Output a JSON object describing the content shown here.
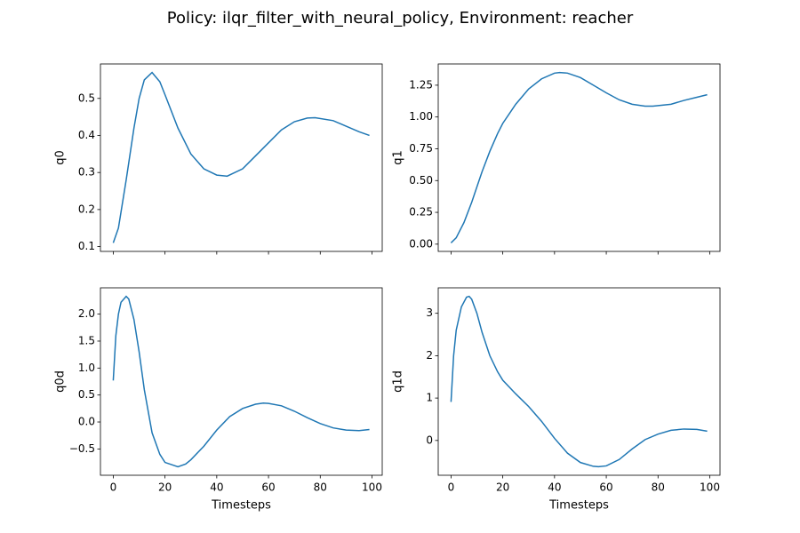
{
  "title": "Policy: ilqr_filter_with_neural_policy, Environment: reacher",
  "chart_data": [
    {
      "type": "line",
      "ylabel": "q0",
      "color": "#1f77b4",
      "x_tick_labels": false,
      "x": [
        0,
        2,
        5,
        8,
        10,
        12,
        15,
        18,
        20,
        25,
        30,
        35,
        40,
        44,
        50,
        55,
        60,
        65,
        70,
        75,
        78,
        85,
        90,
        95,
        99
      ],
      "values": [
        0.11,
        0.15,
        0.28,
        0.42,
        0.5,
        0.55,
        0.57,
        0.545,
        0.51,
        0.42,
        0.35,
        0.31,
        0.293,
        0.29,
        0.31,
        0.345,
        0.38,
        0.415,
        0.437,
        0.447,
        0.448,
        0.44,
        0.425,
        0.41,
        0.4
      ],
      "xlim": [
        -4.95,
        103.95
      ],
      "xticks": [
        0,
        20,
        40,
        60,
        80,
        100
      ],
      "ylim": [
        0.087,
        0.593
      ],
      "yticks": [
        0.1,
        0.2,
        0.3,
        0.4,
        0.5
      ]
    },
    {
      "type": "line",
      "ylabel": "q1",
      "color": "#1f77b4",
      "x_tick_labels": false,
      "x": [
        0,
        2,
        5,
        8,
        10,
        12,
        15,
        18,
        20,
        25,
        30,
        35,
        40,
        42,
        45,
        50,
        55,
        60,
        65,
        70,
        75,
        78,
        85,
        90,
        95,
        99
      ],
      "values": [
        0.01,
        0.05,
        0.17,
        0.33,
        0.45,
        0.57,
        0.73,
        0.87,
        0.95,
        1.1,
        1.22,
        1.3,
        1.345,
        1.35,
        1.345,
        1.31,
        1.25,
        1.19,
        1.135,
        1.1,
        1.085,
        1.085,
        1.1,
        1.13,
        1.155,
        1.175
      ],
      "xlim": [
        -4.95,
        103.95
      ],
      "xticks": [
        0,
        20,
        40,
        60,
        80,
        100
      ],
      "ylim": [
        -0.057,
        1.417
      ],
      "yticks": [
        {
          "value": 0,
          "label": "0.00"
        },
        {
          "value": 0.25,
          "label": "0.25"
        },
        {
          "value": 0.5,
          "label": "0.50"
        },
        {
          "value": 0.75,
          "label": "0.75"
        },
        {
          "value": 1,
          "label": "1.00"
        },
        {
          "value": 1.25,
          "label": "1.25"
        }
      ]
    },
    {
      "type": "line",
      "ylabel": "q0d",
      "xlabel": "Timesteps",
      "color": "#1f77b4",
      "x": [
        0,
        1,
        2,
        3,
        5,
        6,
        8,
        10,
        12,
        15,
        18,
        20,
        25,
        28,
        30,
        35,
        40,
        45,
        50,
        55,
        58,
        60,
        65,
        70,
        75,
        80,
        85,
        90,
        95,
        99
      ],
      "values": [
        0.77,
        1.6,
        2.0,
        2.22,
        2.33,
        2.28,
        1.9,
        1.3,
        0.6,
        -0.2,
        -0.6,
        -0.75,
        -0.83,
        -0.78,
        -0.7,
        -0.45,
        -0.15,
        0.1,
        0.25,
        0.33,
        0.35,
        0.345,
        0.3,
        0.2,
        0.08,
        -0.03,
        -0.11,
        -0.15,
        -0.16,
        -0.14
      ],
      "xlim": [
        -4.95,
        103.95
      ],
      "xticks": [
        0,
        20,
        40,
        60,
        80,
        100
      ],
      "ylim": [
        -0.988,
        2.488
      ],
      "yticks": [
        {
          "value": -0.5,
          "label": "−0.5"
        },
        {
          "value": 0,
          "label": "0.0"
        },
        0.5,
        {
          "value": 1,
          "label": "1.0"
        },
        1.5,
        {
          "value": 2,
          "label": "2.0"
        }
      ]
    },
    {
      "type": "line",
      "ylabel": "q1d",
      "xlabel": "Timesteps",
      "color": "#1f77b4",
      "x": [
        0,
        1,
        2,
        4,
        6,
        7,
        8,
        10,
        12,
        15,
        18,
        20,
        25,
        30,
        35,
        40,
        45,
        50,
        55,
        57,
        60,
        65,
        70,
        75,
        80,
        85,
        90,
        95,
        99
      ],
      "values": [
        0.91,
        2.0,
        2.6,
        3.15,
        3.38,
        3.4,
        3.33,
        3.0,
        2.55,
        2.0,
        1.62,
        1.42,
        1.1,
        0.8,
        0.45,
        0.05,
        -0.3,
        -0.52,
        -0.61,
        -0.62,
        -0.6,
        -0.45,
        -0.2,
        0.02,
        0.15,
        0.24,
        0.27,
        0.26,
        0.22
      ],
      "xlim": [
        -4.95,
        103.95
      ],
      "xticks": [
        0,
        20,
        40,
        60,
        80,
        100
      ],
      "ylim": [
        -0.821,
        3.601
      ],
      "yticks": [
        0,
        1,
        2,
        3
      ]
    }
  ]
}
